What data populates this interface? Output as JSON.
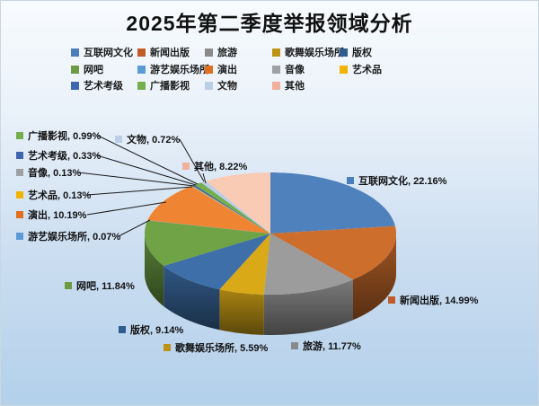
{
  "title": "2025年第二季度举报领域分析",
  "background": {
    "gradient_top": "#F8FBFE",
    "gradient_bottom": "#B3D0EA"
  },
  "chart_data": {
    "type": "pie",
    "style": "3d",
    "title": "2025年第二季度举报领域分析",
    "value_suffix": "%",
    "legend_position": "top",
    "label_format": "name, value%",
    "start_angle_deg": 0,
    "direction": "clockwise",
    "items": [
      {
        "id": "internet-culture",
        "label": "互联网文化",
        "value": 22.16,
        "legend_color": "#4A7EBB",
        "slice_color": "#4F81BD"
      },
      {
        "id": "news-publishing",
        "label": "新闻出版",
        "value": 14.99,
        "legend_color": "#BE5B28",
        "slice_color": "#CE6E2D"
      },
      {
        "id": "tourism",
        "label": "旅游",
        "value": 11.77,
        "legend_color": "#8A8A8A",
        "slice_color": "#9C9C9C"
      },
      {
        "id": "song-dance-venues",
        "label": "歌舞娱乐场所",
        "value": 5.59,
        "legend_color": "#BD9314",
        "slice_color": "#D9A918"
      },
      {
        "id": "copyright",
        "label": "版权",
        "value": 9.14,
        "legend_color": "#2E5C8F",
        "slice_color": "#3E6FA9"
      },
      {
        "id": "internet-cafe",
        "label": "网吧",
        "value": 11.84,
        "legend_color": "#6D9A42",
        "slice_color": "#6FA346"
      },
      {
        "id": "game-amusement-venues",
        "label": "游艺娱乐场所",
        "value": 0.07,
        "legend_color": "#5B9BD5",
        "slice_color": "#5B9BD5"
      },
      {
        "id": "performance",
        "label": "演出",
        "value": 10.19,
        "legend_color": "#E0701E",
        "slice_color": "#EF8532"
      },
      {
        "id": "audio-video",
        "label": "音像",
        "value": 0.13,
        "legend_color": "#9EA0A3",
        "slice_color": "#A6A6A6"
      },
      {
        "id": "artwork",
        "label": "艺术品",
        "value": 0.13,
        "legend_color": "#F0B400",
        "slice_color": "#F0B400"
      },
      {
        "id": "art-grade-exam",
        "label": "艺术考级",
        "value": 0.33,
        "legend_color": "#3D66AE",
        "slice_color": "#3D66AE"
      },
      {
        "id": "radio-tv",
        "label": "广播影视",
        "value": 0.99,
        "legend_color": "#74AE4D",
        "slice_color": "#74AE4D"
      },
      {
        "id": "cultural-relics",
        "label": "文物",
        "value": 0.72,
        "legend_color": "#BCCDE8",
        "slice_color": "#BCCDE8"
      },
      {
        "id": "other",
        "label": "其他",
        "value": 8.22,
        "legend_color": "#F0B09C",
        "slice_color": "#F9CBB5"
      }
    ]
  }
}
